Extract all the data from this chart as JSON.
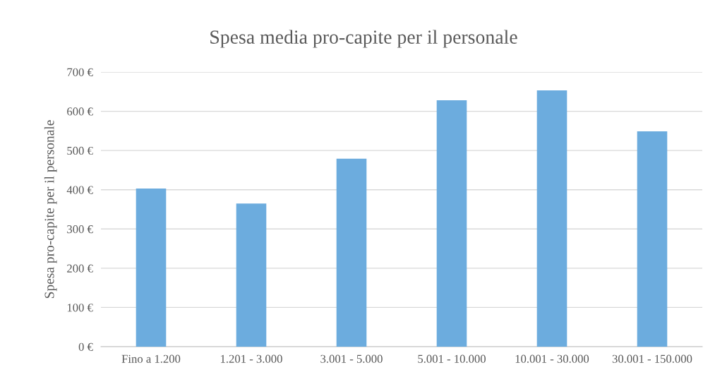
{
  "chart_data": {
    "type": "bar",
    "title": "Spesa media pro-capite per il personale",
    "ylabel": "Spesa pro-capite per il personale",
    "categories": [
      "Fino a 1.200",
      "1.201 - 3.000",
      "3.001 - 5.000",
      "5.001 - 10.000",
      "10.001 - 30.000",
      "30.001 - 150.000"
    ],
    "values": [
      403,
      365,
      479,
      628,
      653,
      549
    ],
    "color": "#6cacde",
    "ylim": [
      0,
      700
    ],
    "yticks": [
      {
        "value": 0,
        "label": "0 €"
      },
      {
        "value": 100,
        "label": "100 €"
      },
      {
        "value": 200,
        "label": "200 €"
      },
      {
        "value": 300,
        "label": "300 €"
      },
      {
        "value": 400,
        "label": "400 €"
      },
      {
        "value": 500,
        "label": "500 €"
      },
      {
        "value": 600,
        "label": "600 €"
      },
      {
        "value": 700,
        "label": "700 €"
      }
    ],
    "grid": "y"
  }
}
